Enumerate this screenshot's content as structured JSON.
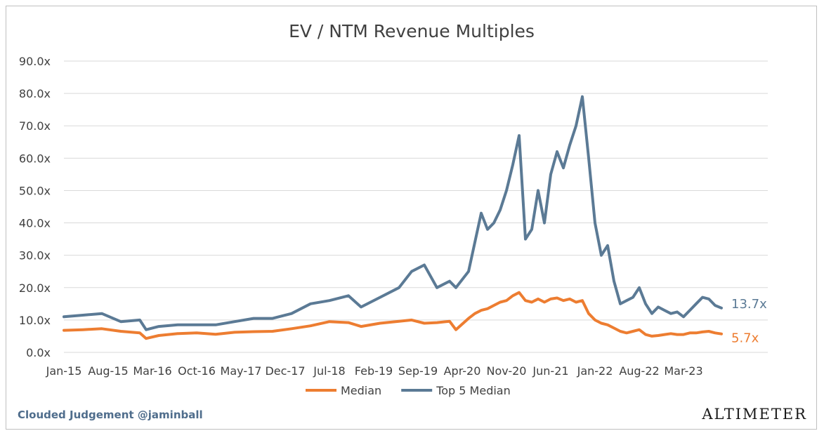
{
  "chart_data": {
    "type": "line",
    "title": "EV / NTM Revenue Multiples",
    "xlabel": "",
    "ylabel": "",
    "ylim": [
      0,
      90
    ],
    "grid": true,
    "legend": "bottom",
    "x_tick_labels": [
      "Jan-15",
      "Aug-15",
      "Mar-16",
      "Oct-16",
      "May-17",
      "Dec-17",
      "Jul-18",
      "Feb-19",
      "Sep-19",
      "Apr-20",
      "Nov-20",
      "Jun-21",
      "Jan-22",
      "Aug-22",
      "Mar-23"
    ],
    "y_tick_labels": [
      "0.0x",
      "10.0x",
      "20.0x",
      "30.0x",
      "40.0x",
      "50.0x",
      "60.0x",
      "70.0x",
      "80.0x",
      "90.0x"
    ],
    "x": [
      "2015-01",
      "2015-04",
      "2015-07",
      "2015-10",
      "2016-01",
      "2016-02",
      "2016-04",
      "2016-07",
      "2016-10",
      "2017-01",
      "2017-04",
      "2017-07",
      "2017-10",
      "2018-01",
      "2018-04",
      "2018-07",
      "2018-10",
      "2018-12",
      "2019-03",
      "2019-06",
      "2019-08",
      "2019-10",
      "2019-12",
      "2020-02",
      "2020-03",
      "2020-05",
      "2020-06",
      "2020-07",
      "2020-08",
      "2020-09",
      "2020-10",
      "2020-11",
      "2020-12",
      "2021-01",
      "2021-02",
      "2021-03",
      "2021-04",
      "2021-05",
      "2021-06",
      "2021-07",
      "2021-08",
      "2021-09",
      "2021-10",
      "2021-11",
      "2021-12",
      "2022-01",
      "2022-02",
      "2022-03",
      "2022-04",
      "2022-05",
      "2022-06",
      "2022-07",
      "2022-08",
      "2022-09",
      "2022-10",
      "2022-11",
      "2022-12",
      "2023-01",
      "2023-02",
      "2023-03",
      "2023-04",
      "2023-05",
      "2023-06",
      "2023-07",
      "2023-08",
      "2023-09"
    ],
    "series": [
      {
        "name": "Median",
        "color": "#ED7D31",
        "end_label": "5.7x",
        "values": [
          6.8,
          7.0,
          7.3,
          6.5,
          6.0,
          4.3,
          5.2,
          5.8,
          6.0,
          5.6,
          6.2,
          6.4,
          6.5,
          7.3,
          8.2,
          9.5,
          9.2,
          8.0,
          9.0,
          9.6,
          10.0,
          9.0,
          9.2,
          9.6,
          7.0,
          10.5,
          12.0,
          13.0,
          13.5,
          14.5,
          15.5,
          16.0,
          17.5,
          18.5,
          16.0,
          15.5,
          16.5,
          15.5,
          16.5,
          16.8,
          16.0,
          16.5,
          15.5,
          16.0,
          12.0,
          10.0,
          9.0,
          8.5,
          7.5,
          6.5,
          6.0,
          6.5,
          7.0,
          5.5,
          5.0,
          5.2,
          5.5,
          5.8,
          5.5,
          5.5,
          6.0,
          6.0,
          6.3,
          6.5,
          6.0,
          5.7
        ]
      },
      {
        "name": "Top 5 Median",
        "color": "#5B7A95",
        "end_label": "13.7x",
        "values": [
          11.0,
          11.5,
          12.0,
          9.5,
          10.0,
          7.0,
          8.0,
          8.5,
          8.5,
          8.5,
          9.5,
          10.5,
          10.5,
          12.0,
          15.0,
          16.0,
          17.5,
          14.0,
          17.0,
          20.0,
          25.0,
          27.0,
          20.0,
          22.0,
          20.0,
          25.0,
          34.0,
          43.0,
          38.0,
          40.0,
          44.0,
          50.0,
          58.0,
          67.0,
          35.0,
          38.0,
          50.0,
          40.0,
          55.0,
          62.0,
          57.0,
          64.0,
          70.0,
          79.0,
          60.0,
          40.0,
          30.0,
          33.0,
          22.0,
          15.0,
          16.0,
          17.0,
          20.0,
          15.0,
          12.0,
          14.0,
          13.0,
          12.0,
          12.5,
          11.0,
          13.0,
          15.0,
          17.0,
          16.5,
          14.5,
          13.7
        ]
      }
    ]
  },
  "footer": {
    "credit": "Clouded Judgement @jaminball",
    "brand": "ALTIMETER"
  }
}
